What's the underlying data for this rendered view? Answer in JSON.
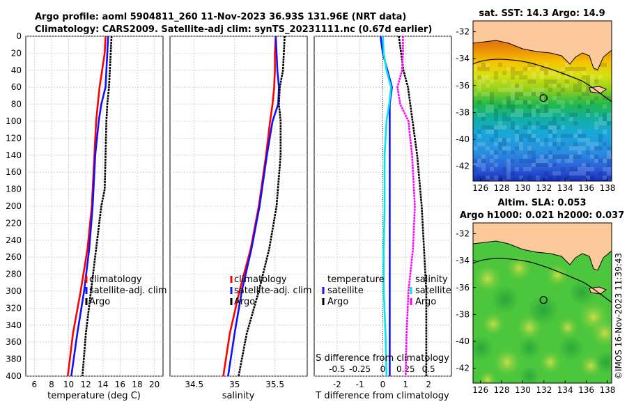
{
  "header": {
    "line1": "Argo profile: aoml 5904811_260 11-Nov-2023 36.93S 131.96E (NRT data)",
    "line2": "Climatology: CARS2009. Satellite-adj clim: synTS_20231111.nc (0.67d earlier)"
  },
  "colors": {
    "climatology": "#ff0000",
    "satellite": "#1010ff",
    "argo": "#000000",
    "t_satellite": "#1010ff",
    "t_argo": "#000000",
    "s_satellite": "#00e5ee",
    "s_argo": "#ff00ff",
    "land": "#fbc99a"
  },
  "legend": {
    "climatology": "climatology",
    "satellite_adj": "satellite-adj. clim",
    "argo": "Argo",
    "temperature": "temperature",
    "salinity": "salinity",
    "satellite": "satellite"
  },
  "chart_data": [
    {
      "id": "temperature-profile",
      "type": "line",
      "xlabel": "temperature (deg C)",
      "ylabel": "depth",
      "xlim": [
        5,
        21
      ],
      "ylim": [
        0,
        400
      ],
      "xticks": [
        6,
        8,
        10,
        12,
        14,
        16,
        18,
        20
      ],
      "yticks": [
        0,
        20,
        40,
        60,
        80,
        100,
        120,
        140,
        160,
        180,
        200,
        220,
        240,
        260,
        280,
        300,
        320,
        340,
        360,
        380,
        400
      ],
      "series": [
        {
          "name": "climatology",
          "depth": [
            0,
            20,
            40,
            60,
            80,
            100,
            140,
            200,
            250,
            300,
            350,
            400
          ],
          "values": [
            14.3,
            14.2,
            13.9,
            13.6,
            13.4,
            13.2,
            13.0,
            12.7,
            12.2,
            11.4,
            10.5,
            9.9
          ]
        },
        {
          "name": "satellite-adj. clim",
          "depth": [
            0,
            20,
            40,
            60,
            80,
            100,
            140,
            200,
            250,
            300,
            350,
            400
          ],
          "values": [
            14.6,
            14.5,
            14.4,
            14.3,
            13.8,
            13.5,
            13.1,
            12.8,
            12.4,
            11.8,
            11.0,
            10.3
          ]
        },
        {
          "name": "Argo",
          "depth": [
            0,
            20,
            40,
            60,
            80,
            100,
            140,
            180,
            200,
            250,
            300,
            350,
            400
          ],
          "values": [
            15.0,
            14.9,
            14.8,
            14.7,
            14.5,
            14.4,
            14.3,
            14.2,
            13.8,
            13.2,
            12.6,
            12.0,
            11.6
          ]
        }
      ]
    },
    {
      "id": "salinity-profile",
      "type": "line",
      "xlabel": "salinity",
      "ylim": [
        0,
        400
      ],
      "xlim": [
        34.2,
        35.9
      ],
      "xticks": [
        34.5,
        35,
        35.5
      ],
      "series": [
        {
          "name": "climatology",
          "depth": [
            0,
            20,
            40,
            60,
            80,
            100,
            140,
            200,
            250,
            300,
            350,
            400
          ],
          "values": [
            35.51,
            35.5,
            35.5,
            35.49,
            35.47,
            35.44,
            35.39,
            35.3,
            35.2,
            35.06,
            34.94,
            34.86
          ]
        },
        {
          "name": "satellite-adj. clim",
          "depth": [
            0,
            20,
            40,
            60,
            80,
            100,
            140,
            200,
            250,
            300,
            350,
            400
          ],
          "values": [
            35.51,
            35.52,
            35.53,
            35.55,
            35.54,
            35.47,
            35.4,
            35.31,
            35.21,
            35.09,
            35.0,
            34.92
          ]
        },
        {
          "name": "Argo",
          "depth": [
            0,
            20,
            40,
            60,
            80,
            100,
            140,
            200,
            250,
            300,
            350,
            400
          ],
          "values": [
            35.62,
            35.61,
            35.6,
            35.56,
            35.55,
            35.57,
            35.57,
            35.52,
            35.43,
            35.3,
            35.15,
            35.05
          ]
        }
      ]
    },
    {
      "id": "difference-profile",
      "type": "line",
      "xlabel": "T difference from climatology",
      "x2label": "S difference from climatology",
      "ylim": [
        0,
        400
      ],
      "xlim": [
        -3,
        3
      ],
      "xticks": [
        -2,
        -1,
        0,
        1,
        2
      ],
      "x2ticks": [
        "-0.5",
        "-0.25",
        "0",
        "0.25",
        "0.5"
      ],
      "series": [
        {
          "name": "temperature satellite",
          "depth": [
            0,
            20,
            40,
            60,
            80,
            100,
            140,
            200,
            250,
            300,
            350,
            400
          ],
          "values": [
            -0.1,
            0.0,
            0.2,
            0.4,
            0.3,
            0.3,
            0.3,
            0.3,
            0.3,
            0.3,
            0.3,
            0.3
          ]
        },
        {
          "name": "temperature Argo",
          "depth": [
            0,
            20,
            40,
            60,
            80,
            100,
            140,
            200,
            250,
            300,
            350,
            400
          ],
          "values": [
            0.7,
            0.8,
            0.9,
            1.1,
            1.2,
            1.3,
            1.5,
            1.7,
            1.8,
            1.9,
            1.9,
            1.9
          ]
        },
        {
          "name": "salinity satellite",
          "depth": [
            0,
            20,
            40,
            60,
            80,
            100,
            140,
            200,
            250,
            300,
            350,
            400
          ],
          "values": [
            0.0,
            0.01,
            0.04,
            0.09,
            0.07,
            0.04,
            0.02,
            0.02,
            0.01,
            0.01,
            0.03,
            0.04
          ]
        },
        {
          "name": "salinity Argo",
          "depth": [
            0,
            20,
            40,
            60,
            80,
            100,
            140,
            200,
            250,
            300,
            350,
            400
          ],
          "values": [
            0.22,
            0.22,
            0.21,
            0.16,
            0.19,
            0.28,
            0.32,
            0.35,
            0.33,
            0.28,
            0.26,
            0.25
          ]
        }
      ]
    }
  ],
  "sst_map": {
    "title": "sat. SST: 14.3 Argo: 14.9",
    "yticks": [
      "-32",
      "-34",
      "-36",
      "-38",
      "-40",
      "-42"
    ],
    "xticks": [
      "126",
      "128",
      "130",
      "132",
      "134",
      "136",
      "138"
    ]
  },
  "sla_map": {
    "title1": "Altim. SLA: 0.053",
    "title2": "Argo h1000: 0.021 h2000: 0.037",
    "yticks": [
      "-32",
      "-34",
      "-36",
      "-38",
      "-40",
      "-42"
    ],
    "xticks": [
      "126",
      "128",
      "130",
      "132",
      "134",
      "136",
      "138"
    ]
  },
  "float_position": {
    "lon": 131.96,
    "lat": -36.93
  },
  "credit": "©IMOS 16-Nov-2023 11:39:43"
}
